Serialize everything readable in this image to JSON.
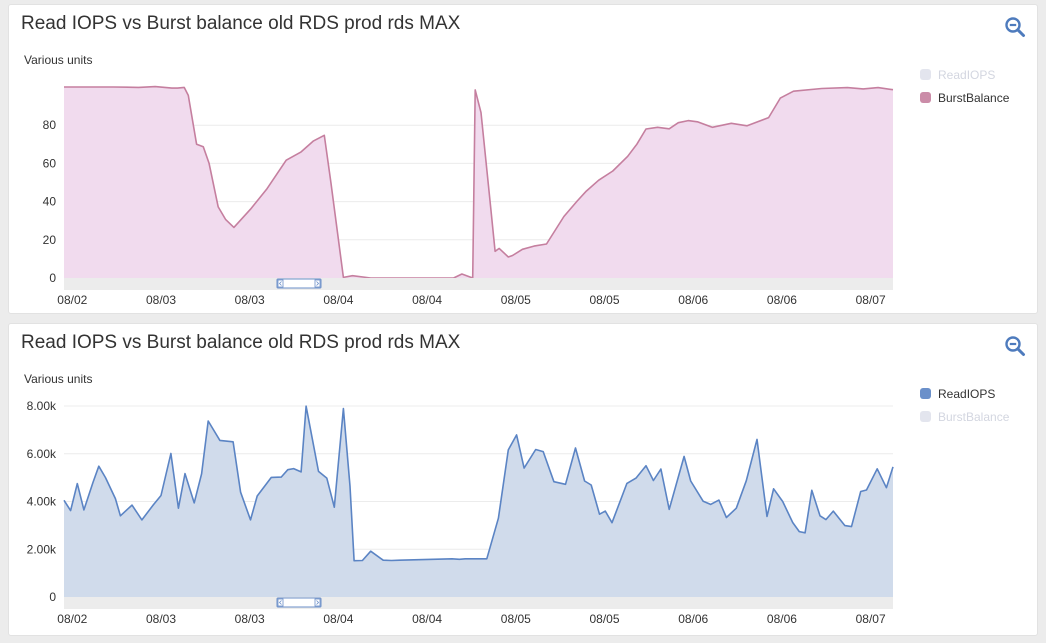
{
  "panels": [
    {
      "title": "Read IOPS vs Burst balance old RDS prod rds MAX",
      "y_unit_label": "Various units",
      "legend": [
        {
          "label": "ReadIOPS",
          "color": "#5b84c4",
          "enabled": false
        },
        {
          "label": "BurstBalance",
          "color": "#c57f9f",
          "enabled": true
        }
      ]
    },
    {
      "title": "Read IOPS vs Burst balance old RDS prod rds MAX",
      "y_unit_label": "Various units",
      "legend": [
        {
          "label": "ReadIOPS",
          "color": "#5b84c4",
          "enabled": true
        },
        {
          "label": "BurstBalance",
          "color": "#c57f9f",
          "enabled": false
        }
      ]
    }
  ],
  "chart_data": [
    {
      "type": "area",
      "ylabel": "Various units",
      "ylim": [
        0,
        100
      ],
      "y_ticks": [
        "0",
        "20",
        "40",
        "60",
        "80"
      ],
      "y_tick_values": [
        0,
        20,
        40,
        60,
        80
      ],
      "x_tick_labels": [
        "08/02",
        "08/03",
        "08/03",
        "08/04",
        "08/04",
        "08/05",
        "08/05",
        "08/06",
        "08/06",
        "08/07"
      ],
      "x_range": [
        0,
        100
      ],
      "x_tick_positions": [
        1,
        11.7,
        22.4,
        33.1,
        43.8,
        54.5,
        65.2,
        75.9,
        86.6,
        97.3
      ],
      "grid": true,
      "legend_position": "right",
      "color": "#c57f9f",
      "fill": "#f1dbee",
      "series": [
        {
          "name": "BurstBalance",
          "x": [
            0,
            3,
            6,
            9,
            11,
            13,
            13.7,
            14.5,
            15,
            16,
            16.8,
            17.5,
            18.6,
            19.5,
            20.5,
            22.5,
            24.5,
            26.8,
            28.6,
            30.1,
            31.4,
            32.2,
            33.7,
            34.8,
            37,
            41,
            45,
            47,
            48,
            49.3,
            49.6,
            50.3,
            51.5,
            52,
            52.5,
            53.6,
            54.1,
            55.3,
            56.7,
            58.2,
            60.3,
            61.9,
            63,
            64.5,
            66.2,
            68,
            69.1,
            70.2,
            71.6,
            73,
            74.1,
            75.3,
            76.4,
            78.2,
            80.5,
            82.4,
            85,
            86.4,
            88,
            91.4,
            94.5,
            96.4,
            98.2,
            100
          ],
          "y": [
            100,
            100,
            100,
            99.8,
            100.2,
            99.4,
            99.4,
            99.8,
            95.6,
            70,
            68.7,
            60,
            37.2,
            30.6,
            26.5,
            36,
            46.8,
            61.7,
            66,
            71.8,
            74.7,
            50,
            0.3,
            1.2,
            0,
            0,
            0,
            0,
            2.1,
            0,
            98.5,
            86.6,
            35.8,
            14,
            15.5,
            11,
            11.8,
            15,
            16.7,
            17.8,
            32.2,
            40.3,
            45.5,
            51.2,
            56,
            63.7,
            70,
            78,
            78.9,
            78.1,
            81.3,
            82.4,
            81.8,
            78.9,
            81,
            79.7,
            84,
            94.2,
            97.8,
            99.2,
            99.7,
            99,
            99.7,
            98.6
          ]
        }
      ]
    },
    {
      "type": "area",
      "ylabel": "Various units",
      "ylim": [
        0,
        8000
      ],
      "y_ticks": [
        "0",
        "2.00k",
        "4.00k",
        "6.00k",
        "8.00k"
      ],
      "y_tick_values": [
        0,
        2000,
        4000,
        6000,
        8000
      ],
      "x_tick_labels": [
        "08/02",
        "08/03",
        "08/03",
        "08/04",
        "08/04",
        "08/05",
        "08/05",
        "08/06",
        "08/06",
        "08/07"
      ],
      "x_range": [
        0,
        100
      ],
      "x_tick_positions": [
        1,
        11.7,
        22.4,
        33.1,
        43.8,
        54.5,
        65.2,
        75.9,
        86.6,
        97.3
      ],
      "grid": true,
      "legend_position": "right",
      "color": "#5b84c4",
      "fill": "#d0dbeb",
      "series": [
        {
          "name": "ReadIOPS",
          "x": [
            0,
            0.8,
            1.6,
            2.4,
            3.5,
            4.2,
            5,
            6.2,
            6.8,
            8.2,
            9.4,
            10.8,
            11.7,
            12.9,
            13.8,
            14.6,
            15.7,
            16.6,
            17.4,
            18.8,
            20.4,
            21.3,
            22.5,
            23.3,
            25,
            26.2,
            27,
            27.7,
            28.6,
            29.2,
            30.7,
            31.7,
            32.6,
            33.7,
            34.5,
            35,
            36,
            37,
            38.5,
            39.5,
            40.5,
            46.8,
            47.7,
            48.4,
            49.3,
            50.2,
            51,
            52.4,
            53.6,
            54.6,
            55.5,
            56.9,
            57.8,
            59.1,
            60.5,
            61.7,
            62.8,
            63.6,
            64.6,
            65.3,
            66.1,
            67.9,
            69,
            70.2,
            71.1,
            72,
            73,
            74.8,
            75.6,
            77.1,
            78,
            79,
            79.9,
            81.1,
            82.3,
            83.6,
            84.8,
            85.6,
            86.7,
            87.9,
            88.7,
            89.4,
            90.2,
            91.2,
            91.9,
            92.8,
            94.2,
            95,
            96.1,
            96.8,
            98.1,
            99.2,
            100
          ],
          "y": [
            4050,
            3620,
            4750,
            3650,
            4800,
            5480,
            5000,
            4120,
            3400,
            3850,
            3230,
            3870,
            4250,
            6010,
            3720,
            5170,
            3940,
            5160,
            7370,
            6560,
            6500,
            4390,
            3230,
            4230,
            5010,
            5020,
            5330,
            5380,
            5240,
            7990,
            5260,
            4980,
            3760,
            7890,
            4640,
            1520,
            1530,
            1920,
            1540,
            1530,
            1540,
            1600,
            1580,
            1600,
            1600,
            1600,
            1600,
            3300,
            6160,
            6790,
            5400,
            6180,
            6090,
            4830,
            4720,
            6240,
            4860,
            4690,
            3470,
            3600,
            3110,
            4760,
            4980,
            5500,
            4880,
            5360,
            3670,
            5890,
            4860,
            4010,
            3880,
            4060,
            3330,
            3720,
            4870,
            6600,
            3370,
            4530,
            4000,
            3120,
            2740,
            2690,
            4470,
            3400,
            3240,
            3600,
            2990,
            2950,
            4420,
            4480,
            5370,
            4580,
            5450
          ]
        }
      ]
    }
  ]
}
